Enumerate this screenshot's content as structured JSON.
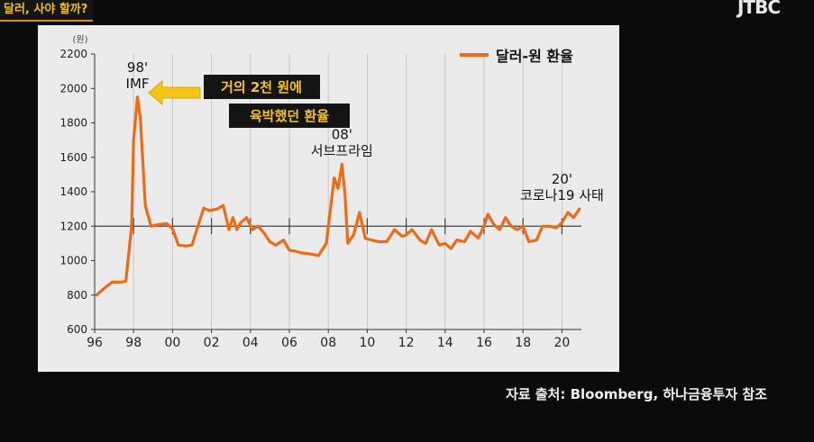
{
  "header": {
    "title": "달러, 사야 할까?",
    "logo": "JTBC"
  },
  "source_note": "자료 출처: Bloomberg, 하나금융투자 참조",
  "colors": {
    "line": "#f06a16",
    "callout_bg": "#141414",
    "callout_text": "#f5c518",
    "arrow": "#f5c518",
    "panel": "#ebebeb"
  },
  "chart_data": {
    "type": "line",
    "title": "",
    "ylabel": "(원)",
    "xlabel": "",
    "ylim": [
      600,
      2200
    ],
    "xlim": [
      1996,
      2021
    ],
    "yticks": [
      600,
      800,
      1000,
      1200,
      1400,
      1600,
      1800,
      2000,
      2200
    ],
    "xticks": [
      1996,
      1998,
      2000,
      2002,
      2004,
      2006,
      2008,
      2010,
      2012,
      2014,
      2016,
      2018,
      2020
    ],
    "xtick_labels": [
      "96",
      "98",
      "00",
      "02",
      "04",
      "06",
      "08",
      "10",
      "12",
      "14",
      "16",
      "18",
      "20"
    ],
    "grid": "vertical",
    "reference_line": 1200,
    "legend": "top-right",
    "series": [
      {
        "name": "달러-원 환율",
        "x": [
          1996.1,
          1996.5,
          1996.9,
          1997.3,
          1997.6,
          1997.9,
          1998.0,
          1998.2,
          1998.35,
          1998.6,
          1998.9,
          1999.3,
          1999.7,
          2000.0,
          2000.3,
          2000.7,
          2001.0,
          2001.3,
          2001.6,
          2001.9,
          2002.3,
          2002.6,
          2002.9,
          2003.1,
          2003.3,
          2003.5,
          2003.8,
          2004.1,
          2004.4,
          2004.7,
          2005.0,
          2005.3,
          2005.7,
          2006.0,
          2006.3,
          2006.6,
          2007.0,
          2007.5,
          2007.9,
          2008.3,
          2008.5,
          2008.7,
          2008.85,
          2009.0,
          2009.3,
          2009.6,
          2009.9,
          2010.2,
          2010.6,
          2011.0,
          2011.4,
          2011.8,
          2012.0,
          2012.3,
          2012.7,
          2013.0,
          2013.3,
          2013.7,
          2014.0,
          2014.3,
          2014.6,
          2015.0,
          2015.3,
          2015.7,
          2016.0,
          2016.2,
          2016.5,
          2016.8,
          2017.1,
          2017.4,
          2017.7,
          2018.0,
          2018.3,
          2018.7,
          2019.0,
          2019.4,
          2019.7,
          2020.0,
          2020.3,
          2020.6,
          2020.9
        ],
        "values": [
          800,
          840,
          875,
          875,
          880,
          1200,
          1700,
          1950,
          1820,
          1320,
          1200,
          1210,
          1215,
          1185,
          1090,
          1085,
          1090,
          1200,
          1305,
          1290,
          1300,
          1320,
          1180,
          1250,
          1180,
          1220,
          1250,
          1180,
          1200,
          1160,
          1110,
          1090,
          1120,
          1060,
          1055,
          1045,
          1040,
          1030,
          1100,
          1480,
          1420,
          1560,
          1390,
          1100,
          1150,
          1280,
          1130,
          1120,
          1110,
          1110,
          1180,
          1140,
          1150,
          1180,
          1120,
          1100,
          1180,
          1090,
          1100,
          1070,
          1120,
          1110,
          1170,
          1130,
          1200,
          1270,
          1210,
          1180,
          1250,
          1200,
          1180,
          1200,
          1110,
          1120,
          1200,
          1200,
          1190,
          1220,
          1280,
          1250,
          1300
        ]
      }
    ],
    "annotations": [
      {
        "id": "imf",
        "x": 1998.2,
        "y": 1950,
        "line1": "98'",
        "line2": "IMF"
      },
      {
        "id": "subprime",
        "x": 2008.7,
        "y": 1560,
        "line1": "08'",
        "line2": "서브프라임"
      },
      {
        "id": "corona",
        "x": 2020.0,
        "y": 1300,
        "line1": "20'",
        "line2": "코로나19 사태"
      }
    ],
    "callout": {
      "line1": "거의 2천 원에",
      "line2": "육박했던 환율"
    }
  }
}
